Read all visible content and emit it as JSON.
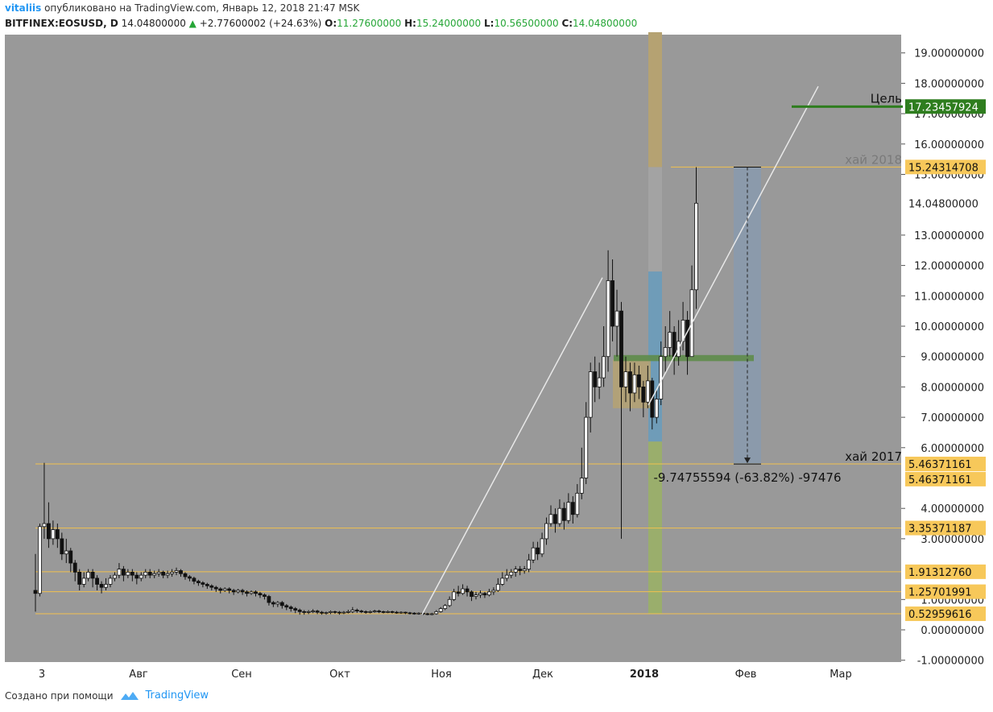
{
  "header": {
    "user": "vitaliis",
    "published": "опубликовано на TradingView.com, Январь 12, 2018 21:47 MSK",
    "symbol": "BITFINEX:EOSUSD, D",
    "price": "14.04800000",
    "arrow": "▲",
    "change": "+2.77600002 (+24.63%)",
    "o_label": "O:",
    "o_val": "11.27600000",
    "h_label": "H:",
    "h_val": "15.24000000",
    "l_label": "L:",
    "l_val": "10.56500000",
    "c_label": "C:",
    "c_val": "14.04800000"
  },
  "footer": {
    "created_with": "Создано при помощи",
    "brand": "TradingView"
  },
  "colors": {
    "plot_bg": "#999999",
    "level_line": "#f2c14e",
    "target": "#2e7d1e",
    "measure_fill": "#8a9aad",
    "trend": "#e8e8e8"
  },
  "chart_data": {
    "type": "candlestick",
    "symbol": "EOSUSD",
    "interval": "D",
    "ylim": [
      -1,
      19.7
    ],
    "y_ticks": [
      "-1.00000000",
      "0.00000000",
      "1.00000000",
      "3.00000000",
      "4.00000000",
      "6.00000000",
      "7.00000000",
      "8.00000000",
      "9.00000000",
      "10.00000000",
      "11.00000000",
      "12.00000000",
      "13.00000000",
      "15.00000000",
      "16.00000000",
      "17.00000000",
      "18.00000000",
      "19.00000000"
    ],
    "x_ticks": [
      "3",
      "Авг",
      "Сен",
      "Окт",
      "Ноя",
      "Дек",
      "2018",
      "Фев",
      "Мар"
    ],
    "levels": [
      {
        "value": 0.52959616,
        "label": "0.52959616"
      },
      {
        "value": 1.25701991,
        "label": "1.25701991"
      },
      {
        "value": 1.9131276,
        "label": "1.91312760"
      },
      {
        "value": 3.35371187,
        "label": "3.35371187"
      },
      {
        "value": 5.46371161,
        "label": "5.46371161"
      },
      {
        "value": 15.24314708,
        "label": "15.24314708"
      }
    ],
    "current_price": {
      "value": 14.048,
      "label": "14.04800000"
    },
    "target": {
      "value": 17.23457924,
      "label": "17.23457924",
      "text": "Цель"
    },
    "annotations": {
      "high_2018": "хай 2018",
      "high_2017": "хай 2017",
      "measure": "-9.74755594 (-63.82%) -97476"
    },
    "second_level_label": "5.46371161",
    "series": [
      {
        "name": "EOSUSD",
        "values": [
          [
            1.3,
            1.2,
            2.5,
            0.6
          ],
          [
            1.2,
            3.4,
            3.5,
            1.1
          ],
          [
            3.4,
            3.5,
            5.5,
            3.0
          ],
          [
            3.5,
            3.0,
            4.2,
            2.7
          ],
          [
            3.0,
            3.3,
            3.6,
            2.8
          ],
          [
            3.3,
            3.0,
            3.5,
            2.7
          ],
          [
            3.0,
            2.5,
            3.2,
            2.3
          ],
          [
            2.5,
            2.6,
            3.0,
            2.2
          ],
          [
            2.6,
            2.2,
            2.7,
            1.9
          ],
          [
            2.2,
            1.9,
            2.3,
            1.6
          ],
          [
            1.9,
            1.5,
            2.0,
            1.3
          ],
          [
            1.5,
            1.7,
            1.9,
            1.4
          ],
          [
            1.7,
            1.9,
            2.0,
            1.6
          ],
          [
            1.9,
            1.7,
            2.0,
            1.4
          ],
          [
            1.7,
            1.5,
            1.8,
            1.3
          ],
          [
            1.5,
            1.4,
            1.6,
            1.2
          ],
          [
            1.4,
            1.5,
            1.7,
            1.3
          ],
          [
            1.5,
            1.7,
            1.8,
            1.4
          ],
          [
            1.7,
            1.8,
            1.9,
            1.6
          ],
          [
            1.8,
            2.0,
            2.2,
            1.7
          ],
          [
            2.0,
            1.8,
            2.1,
            1.6
          ],
          [
            1.8,
            1.9,
            2.0,
            1.7
          ],
          [
            1.9,
            1.8,
            2.0,
            1.6
          ],
          [
            1.8,
            1.7,
            1.9,
            1.5
          ],
          [
            1.7,
            1.8,
            1.9,
            1.6
          ],
          [
            1.8,
            1.9,
            2.0,
            1.7
          ],
          [
            1.9,
            1.8,
            2.0,
            1.7
          ],
          [
            1.8,
            1.85,
            1.95,
            1.7
          ],
          [
            1.85,
            1.9,
            2.0,
            1.75
          ],
          [
            1.9,
            1.8,
            1.95,
            1.7
          ],
          [
            1.8,
            1.85,
            1.95,
            1.7
          ],
          [
            1.85,
            1.9,
            2.0,
            1.75
          ],
          [
            1.9,
            1.95,
            2.05,
            1.8
          ],
          [
            1.95,
            1.85,
            2.0,
            1.75
          ],
          [
            1.85,
            1.75,
            1.9,
            1.65
          ],
          [
            1.75,
            1.7,
            1.8,
            1.6
          ],
          [
            1.7,
            1.6,
            1.75,
            1.5
          ],
          [
            1.6,
            1.55,
            1.65,
            1.45
          ],
          [
            1.55,
            1.5,
            1.6,
            1.4
          ],
          [
            1.5,
            1.45,
            1.55,
            1.35
          ],
          [
            1.45,
            1.4,
            1.5,
            1.3
          ],
          [
            1.4,
            1.35,
            1.45,
            1.25
          ],
          [
            1.35,
            1.3,
            1.4,
            1.2
          ],
          [
            1.3,
            1.35,
            1.4,
            1.25
          ],
          [
            1.35,
            1.3,
            1.4,
            1.2
          ],
          [
            1.3,
            1.25,
            1.35,
            1.15
          ],
          [
            1.25,
            1.3,
            1.35,
            1.2
          ],
          [
            1.3,
            1.25,
            1.35,
            1.15
          ],
          [
            1.25,
            1.2,
            1.3,
            1.1
          ],
          [
            1.2,
            1.25,
            1.3,
            1.15
          ],
          [
            1.25,
            1.2,
            1.3,
            1.1
          ],
          [
            1.2,
            1.15,
            1.25,
            1.05
          ],
          [
            1.15,
            1.1,
            1.2,
            1.0
          ],
          [
            1.1,
            0.9,
            1.15,
            0.8
          ],
          [
            0.9,
            0.85,
            0.95,
            0.75
          ],
          [
            0.85,
            0.9,
            0.95,
            0.75
          ],
          [
            0.9,
            0.8,
            0.95,
            0.7
          ],
          [
            0.8,
            0.75,
            0.85,
            0.65
          ],
          [
            0.75,
            0.7,
            0.8,
            0.6
          ],
          [
            0.7,
            0.65,
            0.75,
            0.55
          ],
          [
            0.65,
            0.6,
            0.7,
            0.5
          ],
          [
            0.6,
            0.58,
            0.65,
            0.5
          ],
          [
            0.58,
            0.6,
            0.65,
            0.52
          ],
          [
            0.6,
            0.62,
            0.68,
            0.55
          ],
          [
            0.62,
            0.58,
            0.66,
            0.52
          ],
          [
            0.58,
            0.55,
            0.62,
            0.5
          ],
          [
            0.55,
            0.57,
            0.6,
            0.5
          ],
          [
            0.57,
            0.6,
            0.64,
            0.52
          ],
          [
            0.6,
            0.58,
            0.63,
            0.53
          ],
          [
            0.58,
            0.56,
            0.62,
            0.5
          ],
          [
            0.56,
            0.58,
            0.62,
            0.52
          ],
          [
            0.58,
            0.6,
            0.66,
            0.54
          ],
          [
            0.6,
            0.65,
            0.75,
            0.55
          ],
          [
            0.65,
            0.62,
            0.7,
            0.56
          ],
          [
            0.62,
            0.6,
            0.66,
            0.55
          ],
          [
            0.6,
            0.58,
            0.64,
            0.53
          ],
          [
            0.58,
            0.6,
            0.64,
            0.54
          ],
          [
            0.6,
            0.62,
            0.66,
            0.56
          ],
          [
            0.62,
            0.6,
            0.66,
            0.55
          ],
          [
            0.6,
            0.59,
            0.63,
            0.54
          ],
          [
            0.59,
            0.6,
            0.64,
            0.55
          ],
          [
            0.6,
            0.58,
            0.63,
            0.54
          ],
          [
            0.58,
            0.57,
            0.62,
            0.53
          ],
          [
            0.57,
            0.58,
            0.61,
            0.53
          ],
          [
            0.58,
            0.56,
            0.6,
            0.52
          ],
          [
            0.56,
            0.55,
            0.59,
            0.51
          ],
          [
            0.55,
            0.54,
            0.58,
            0.5
          ],
          [
            0.54,
            0.55,
            0.58,
            0.5
          ],
          [
            0.55,
            0.53,
            0.57,
            0.49
          ],
          [
            0.53,
            0.52,
            0.56,
            0.48
          ],
          [
            0.52,
            0.53,
            0.56,
            0.48
          ],
          [
            0.53,
            0.6,
            0.65,
            0.5
          ],
          [
            0.6,
            0.7,
            0.75,
            0.57
          ],
          [
            0.7,
            0.8,
            0.85,
            0.65
          ],
          [
            0.8,
            1.0,
            1.1,
            0.75
          ],
          [
            1.0,
            1.25,
            1.35,
            0.95
          ],
          [
            1.25,
            1.2,
            1.45,
            1.1
          ],
          [
            1.2,
            1.35,
            1.5,
            1.15
          ],
          [
            1.35,
            1.25,
            1.45,
            1.1
          ],
          [
            1.25,
            1.1,
            1.3,
            0.95
          ],
          [
            1.1,
            1.15,
            1.25,
            1.0
          ],
          [
            1.15,
            1.2,
            1.3,
            1.05
          ],
          [
            1.2,
            1.15,
            1.25,
            1.05
          ],
          [
            1.15,
            1.25,
            1.35,
            1.1
          ],
          [
            1.25,
            1.3,
            1.4,
            1.15
          ],
          [
            1.3,
            1.5,
            1.7,
            1.25
          ],
          [
            1.5,
            1.7,
            1.9,
            1.45
          ],
          [
            1.7,
            1.8,
            2.0,
            1.6
          ],
          [
            1.8,
            1.9,
            2.0,
            1.7
          ],
          [
            1.9,
            2.0,
            2.1,
            1.75
          ],
          [
            2.0,
            1.95,
            2.1,
            1.8
          ],
          [
            1.95,
            2.0,
            2.1,
            1.85
          ],
          [
            2.0,
            2.3,
            2.5,
            1.9
          ],
          [
            2.3,
            2.7,
            2.9,
            2.2
          ],
          [
            2.7,
            2.5,
            2.9,
            2.3
          ],
          [
            2.5,
            3.0,
            3.2,
            2.4
          ],
          [
            3.0,
            3.5,
            3.7,
            2.8
          ],
          [
            3.5,
            3.8,
            4.1,
            3.4
          ],
          [
            3.8,
            3.5,
            4.0,
            3.2
          ],
          [
            3.5,
            4.0,
            4.3,
            3.4
          ],
          [
            4.0,
            3.6,
            4.2,
            3.3
          ],
          [
            3.6,
            4.2,
            4.5,
            3.5
          ],
          [
            4.2,
            3.8,
            4.4,
            3.5
          ],
          [
            3.8,
            4.5,
            4.8,
            3.7
          ],
          [
            4.5,
            5.0,
            6.0,
            4.3
          ],
          [
            5.0,
            7.0,
            7.5,
            4.8
          ],
          [
            7.0,
            8.5,
            8.8,
            6.5
          ],
          [
            8.5,
            8.0,
            9.0,
            7.5
          ],
          [
            8.0,
            8.3,
            8.8,
            7.6
          ],
          [
            8.3,
            9.0,
            10.0,
            8.0
          ],
          [
            9.0,
            11.5,
            12.5,
            8.5
          ],
          [
            11.5,
            10.0,
            12.2,
            9.5
          ],
          [
            10.0,
            10.5,
            11.2,
            9.0
          ],
          [
            10.5,
            8.0,
            10.8,
            3.0
          ],
          [
            8.0,
            8.5,
            9.0,
            7.5
          ],
          [
            8.5,
            7.8,
            8.8,
            7.2
          ],
          [
            7.8,
            8.4,
            8.8,
            7.5
          ],
          [
            8.4,
            8.0,
            8.7,
            7.6
          ],
          [
            8.0,
            7.5,
            8.2,
            7.0
          ],
          [
            7.5,
            8.2,
            8.7,
            7.3
          ],
          [
            8.2,
            7.0,
            8.3,
            6.6
          ],
          [
            7.0,
            7.6,
            7.9,
            6.8
          ],
          [
            7.6,
            9.0,
            9.5,
            7.4
          ],
          [
            9.0,
            9.3,
            10.0,
            8.5
          ],
          [
            9.3,
            9.8,
            10.5,
            9.0
          ],
          [
            9.8,
            9.0,
            10.0,
            8.4
          ],
          [
            9.0,
            9.5,
            10.2,
            8.7
          ],
          [
            9.5,
            10.2,
            10.8,
            9.2
          ],
          [
            10.2,
            9.0,
            10.5,
            8.4
          ],
          [
            9.0,
            11.2,
            12.0,
            9.0
          ],
          [
            11.2,
            14.05,
            15.24,
            10.57
          ]
        ]
      }
    ]
  }
}
